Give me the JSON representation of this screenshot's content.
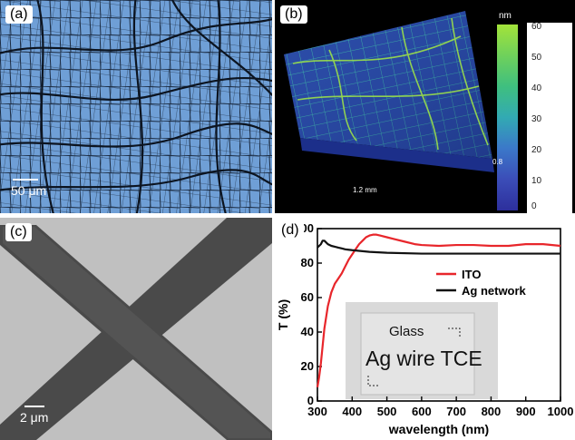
{
  "panel_a": {
    "label": "(a)",
    "scale_bar": "50 μm"
  },
  "panel_b": {
    "label": "(b)",
    "colorbar_unit": "nm",
    "colorbar_ticks": [
      "60",
      "50",
      "40",
      "30",
      "20",
      "10",
      "0"
    ],
    "axis_x_text": "1.2 mm",
    "axis_y_text": "0.8"
  },
  "panel_c": {
    "label": "(c)",
    "scale_bar": "2 μm"
  },
  "panel_d": {
    "label": "(d)",
    "inset_glass": "Glass",
    "inset_text": "Ag wire TCE"
  },
  "colors": {
    "ito": "#e8262b",
    "ag": "#111111",
    "map_blue": "#6f9fd6"
  },
  "chart_data": {
    "type": "line",
    "xlabel": "wavelength (nm)",
    "ylabel": "T (%)",
    "xlim": [
      300,
      1000
    ],
    "ylim": [
      0,
      100
    ],
    "xticks": [
      "300",
      "400",
      "500",
      "600",
      "700",
      "800",
      "900",
      "1000"
    ],
    "yticks": [
      "0",
      "20",
      "40",
      "60",
      "80",
      "100"
    ],
    "legend_position": "right",
    "series": [
      {
        "name": "ITO",
        "color": "#e8262b",
        "x": [
          300,
          305,
          310,
          315,
          320,
          330,
          340,
          350,
          360,
          370,
          380,
          390,
          400,
          410,
          420,
          430,
          440,
          450,
          460,
          470,
          480,
          500,
          520,
          550,
          580,
          600,
          650,
          700,
          750,
          800,
          850,
          900,
          950,
          1000
        ],
        "y": [
          8,
          14,
          22,
          32,
          42,
          55,
          63,
          68,
          71,
          74,
          78,
          82,
          85,
          88,
          91,
          93,
          95,
          96,
          96.5,
          96.5,
          96,
          95,
          94,
          92.5,
          91,
          90.5,
          90,
          90.5,
          90.5,
          90,
          90,
          91,
          91,
          90
        ]
      },
      {
        "name": "Ag network",
        "color": "#111111",
        "x": [
          300,
          305,
          310,
          315,
          320,
          330,
          340,
          350,
          360,
          370,
          380,
          400,
          450,
          500,
          600,
          700,
          800,
          900,
          1000
        ],
        "y": [
          89,
          90,
          91,
          93,
          93,
          91,
          90,
          89.5,
          89,
          88.5,
          88,
          87.5,
          86.5,
          86,
          85.5,
          85.5,
          85.5,
          85.5,
          85.5
        ]
      }
    ]
  }
}
